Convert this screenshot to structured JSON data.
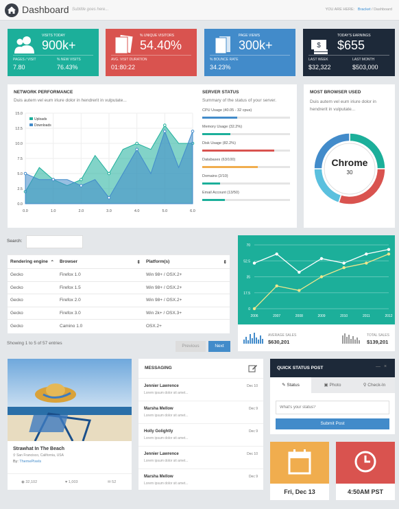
{
  "header": {
    "title": "Dashboard",
    "subtitle": "Subtitle goes here...",
    "you_are_here": "YOU ARE HERE:",
    "crumb_link": "Bracket",
    "crumb_current": "Dashboard"
  },
  "stats": [
    {
      "label": "VISITS TODAY",
      "value": "900k+",
      "sub1_label": "PAGES / VISIT",
      "sub1_value": "7.80",
      "sub2_label": "% NEW VISITS",
      "sub2_value": "76.43%",
      "color": "#1caf9a"
    },
    {
      "label": "% UNIQUE VISITORS",
      "value": "54.40%",
      "sub1_label": "AVG. VISIT DURATION",
      "sub1_value": "01:80:22",
      "sub2_label": "",
      "sub2_value": "",
      "color": "#d9534f"
    },
    {
      "label": "PAGE VIEWS",
      "value": "300k+",
      "sub1_label": "% BOUNCE RATE",
      "sub1_value": "34.23%",
      "sub2_label": "",
      "sub2_value": "",
      "color": "#428bca"
    },
    {
      "label": "TODAY'S EARNINGS",
      "value": "$655",
      "sub1_label": "LAST WEEK",
      "sub1_value": "$32,322",
      "sub2_label": "LAST MONTH",
      "sub2_value": "$503,000",
      "color": "#1d2939"
    }
  ],
  "network": {
    "title": "NETWORK PERFORMANCE",
    "desc": "Duis autem vel eum iriure dolor in hendrerit in vulputate..."
  },
  "server": {
    "title": "SERVER STATUS",
    "desc": "Summary of the status of your server.",
    "bars": [
      {
        "label": "CPU Usage (40.05 - 32 cpus)",
        "pct": 40,
        "color": "#428bca"
      },
      {
        "label": "Memory Usage (32.2%)",
        "pct": 32.2,
        "color": "#1caf9a"
      },
      {
        "label": "Disk Usage (82.2%)",
        "pct": 82.2,
        "color": "#d9534f"
      },
      {
        "label": "Databases (63/100)",
        "pct": 63,
        "color": "#f0ad4e"
      },
      {
        "label": "Domains (2/10)",
        "pct": 20,
        "color": "#1caf9a"
      },
      {
        "label": "Email Account (13/50)",
        "pct": 26,
        "color": "#1caf9a"
      }
    ]
  },
  "browser": {
    "title": "MOST BROWSER USED",
    "desc": "Duis autem vel eum iriure dolor in hendrerit in vulputate...",
    "name": "Chrome",
    "value": "30"
  },
  "table": {
    "search_label": "Search:",
    "search_value": "",
    "columns": [
      "Rendering engine",
      "Browser",
      "Platform(s)"
    ],
    "rows": [
      [
        "Gecko",
        "Firefox 1.0",
        "Win 98+ / OSX.2+"
      ],
      [
        "Gecko",
        "Firefox 1.5",
        "Win 98+ / OSX.2+"
      ],
      [
        "Gecko",
        "Firefox 2.0",
        "Win 98+ / OSX.2+"
      ],
      [
        "Gecko",
        "Firefox 3.0",
        "Win 2k+ / OSX.3+"
      ],
      [
        "Gecko",
        "Camino 1.0",
        "OSX.2+"
      ]
    ],
    "info": "Showing 1 to 5 of 57 entries",
    "prev": "Previous",
    "next": "Next"
  },
  "sales": {
    "avg_label": "AVERAGE SALES",
    "avg_value": "$630,201",
    "total_label": "TOTAL SALES",
    "total_value": "$139,201"
  },
  "photo": {
    "title": "Strawhat In The Beach",
    "location": "San Francisco, California, USA",
    "by_label": "By:",
    "author": "ThemePixels",
    "likes": "32,102",
    "hearts": "1,003",
    "comments": "52"
  },
  "messaging": {
    "title": "MESSAGING",
    "items": [
      {
        "name": "Jennier Lawrence",
        "preview": "Lorem ipsum dolor sit amet...",
        "date": "Dec 10"
      },
      {
        "name": "Marsha Mellow",
        "preview": "Lorem ipsum dolor sit amet...",
        "date": "Dec 9"
      },
      {
        "name": "Holly Golightly",
        "preview": "Lorem ipsum dolor sit amet...",
        "date": "Dec 9"
      },
      {
        "name": "Jennier Lawrence",
        "preview": "Lorem ipsum dolor sit amet...",
        "date": "Dec 10"
      },
      {
        "name": "Marsha Mellow",
        "preview": "Lorem ipsum dolor sit amet...",
        "date": "Dec 9"
      }
    ]
  },
  "quick": {
    "title": "QUICK STATUS POST",
    "tabs": [
      "Status",
      "Photo",
      "Check-In"
    ],
    "placeholder": "What's your status?",
    "submit": "Submit Post"
  },
  "date_widget": {
    "value": "Fri, Dec 13",
    "color": "#f0ad4e"
  },
  "time_widget": {
    "value": "4:50AM PST",
    "color": "#d9534f"
  },
  "chart_data": [
    {
      "type": "area",
      "x": [
        0,
        0.5,
        1,
        1.5,
        2,
        2.5,
        3,
        3.5,
        4,
        4.5,
        5,
        5.5,
        6
      ],
      "series": [
        {
          "name": "Uploads",
          "values": [
            2,
            6,
            4,
            3,
            4,
            8,
            5,
            9,
            10,
            9,
            13,
            10,
            10
          ],
          "color": "#1caf9a"
        },
        {
          "name": "Downloads",
          "values": [
            5,
            4,
            4,
            4,
            3,
            4,
            1,
            5,
            9,
            5,
            12,
            6,
            12
          ],
          "color": "#428bca"
        }
      ],
      "xticks": [
        0.0,
        1.0,
        2.0,
        3.0,
        4.0,
        5.0,
        6.0
      ],
      "yticks": [
        0,
        2.5,
        5,
        7.5,
        10,
        12.5,
        15
      ],
      "ylim": [
        0,
        15
      ],
      "xlim": [
        0,
        6
      ]
    },
    {
      "type": "line",
      "categories": [
        "2006",
        "2007",
        "2008",
        "2009",
        "2010",
        "2011",
        "2012"
      ],
      "series": [
        {
          "values": [
            50,
            60,
            40,
            55,
            50,
            60,
            65
          ],
          "color": "#fff"
        },
        {
          "values": [
            0,
            25,
            20,
            35,
            45,
            50,
            60
          ],
          "color": "#f0e68c"
        }
      ],
      "yticks": [
        0,
        17.5,
        35,
        52.5,
        70
      ],
      "ylim": [
        0,
        70
      ]
    },
    {
      "type": "pie",
      "values": [
        25,
        30,
        20,
        25
      ],
      "colors": [
        "#1caf9a",
        "#d9534f",
        "#5bc0de",
        "#428bca"
      ]
    }
  ]
}
